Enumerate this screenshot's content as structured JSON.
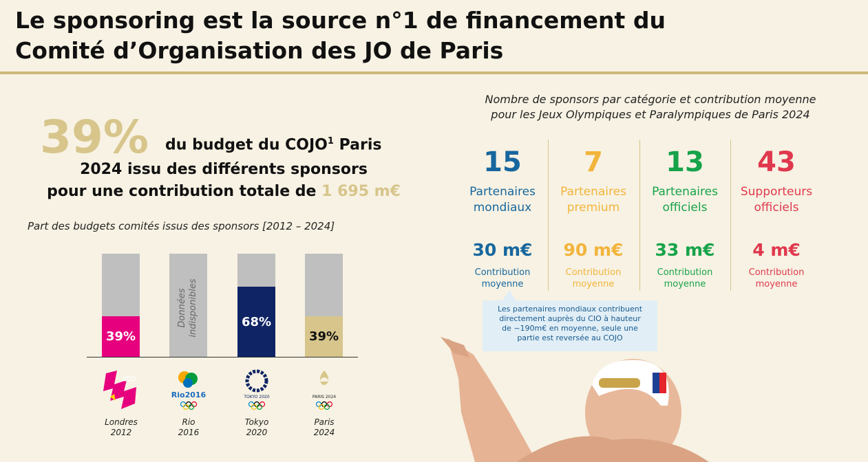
{
  "title_line1": "Le sponsoring est la source n°1 de financement du",
  "title_line2": "Comité d’Organisation des JO de Paris",
  "headline": {
    "pct": "39%",
    "line1": "du budget du COJO",
    "sup": "1",
    "line1_end": " Paris",
    "line2": "2024 issu des différents sponsors",
    "line3_prefix": "pour une contribution totale de ",
    "line3_amount": "1 695 m€"
  },
  "bar_chart": {
    "title": "Part des budgets comités issus des sponsors [2012 – 2024]",
    "nodata_label": "Données indisponibles",
    "bars": [
      {
        "label": "39%",
        "value": 39,
        "color": "#e6007e",
        "text_color": "#ffffff",
        "city": "Londres",
        "year": "2012",
        "logo": "london-2012-logo"
      },
      {
        "label": "",
        "value": null,
        "color": "#bfbfbf",
        "text_color": "#666666",
        "city": "Rio",
        "year": "2016",
        "logo": "rio-2016-logo"
      },
      {
        "label": "68%",
        "value": 68,
        "color": "#0f2464",
        "text_color": "#ffffff",
        "city": "Tokyo",
        "year": "2020",
        "logo": "tokyo-2020-logo"
      },
      {
        "label": "39%",
        "value": 39,
        "color": "#d7c58b",
        "text_color": "#111111",
        "city": "Paris",
        "year": "2024",
        "logo": "paris-2024-logo"
      }
    ]
  },
  "logos": {
    "rio_text": "Rio2016",
    "tokyo_text": "TOKYO 2020",
    "paris_text": "PARIS 2024"
  },
  "sponsors": {
    "title_line1": "Nombre de sponsors par catégorie et contribution moyenne",
    "title_line2": "pour les Jeux Olympiques et Paralympiques de Paris 2024",
    "categories": [
      {
        "count": "15",
        "line1": "Partenaires",
        "line2": "mondiaux",
        "amount": "30 m€",
        "c1": "Contribution",
        "c2": "moyenne",
        "color": "#17679e"
      },
      {
        "count": "7",
        "line1": "Partenaires",
        "line2": "premium",
        "amount": "90 m€",
        "c1": "Contribution",
        "c2": "moyenne",
        "color": "#f2b43c"
      },
      {
        "count": "13",
        "line1": "Partenaires",
        "line2": "officiels",
        "amount": "33 m€",
        "c1": "Contribution",
        "c2": "moyenne",
        "color": "#17a34a"
      },
      {
        "count": "43",
        "line1": "Supporteurs",
        "line2": "officiels",
        "amount": "4 m€",
        "c1": "Contribution",
        "c2": "moyenne",
        "color": "#e0384d"
      }
    ],
    "note": [
      "Les partenaires mondiaux contribuent",
      "directement auprès du CIO à hauteur",
      "de ~190m€ en moyenne, seule une",
      "partie est reversée au COJO"
    ]
  },
  "colors": {
    "gold": "#d7c58b",
    "background": "#f7f2e3"
  }
}
